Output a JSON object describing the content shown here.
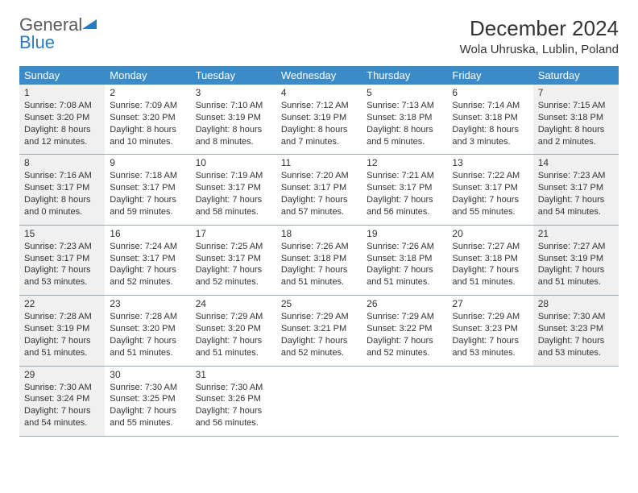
{
  "brand": {
    "word1": "General",
    "word2": "Blue"
  },
  "title": "December 2024",
  "location": "Wola Uhruska, Lublin, Poland",
  "colors": {
    "header_bg": "#3b8bc9",
    "header_text": "#ffffff",
    "cell_shade": "#f0f0f0",
    "border": "#95aab9",
    "logo_gray": "#5a5a5a",
    "logo_blue": "#2b7bbf"
  },
  "day_names": [
    "Sunday",
    "Monday",
    "Tuesday",
    "Wednesday",
    "Thursday",
    "Friday",
    "Saturday"
  ],
  "weeks": [
    [
      {
        "n": "1",
        "shaded": true,
        "sr": "7:08 AM",
        "ss": "3:20 PM",
        "dl": "8 hours and 12 minutes."
      },
      {
        "n": "2",
        "shaded": false,
        "sr": "7:09 AM",
        "ss": "3:20 PM",
        "dl": "8 hours and 10 minutes."
      },
      {
        "n": "3",
        "shaded": false,
        "sr": "7:10 AM",
        "ss": "3:19 PM",
        "dl": "8 hours and 8 minutes."
      },
      {
        "n": "4",
        "shaded": false,
        "sr": "7:12 AM",
        "ss": "3:19 PM",
        "dl": "8 hours and 7 minutes."
      },
      {
        "n": "5",
        "shaded": false,
        "sr": "7:13 AM",
        "ss": "3:18 PM",
        "dl": "8 hours and 5 minutes."
      },
      {
        "n": "6",
        "shaded": false,
        "sr": "7:14 AM",
        "ss": "3:18 PM",
        "dl": "8 hours and 3 minutes."
      },
      {
        "n": "7",
        "shaded": true,
        "sr": "7:15 AM",
        "ss": "3:18 PM",
        "dl": "8 hours and 2 minutes."
      }
    ],
    [
      {
        "n": "8",
        "shaded": true,
        "sr": "7:16 AM",
        "ss": "3:17 PM",
        "dl": "8 hours and 0 minutes."
      },
      {
        "n": "9",
        "shaded": false,
        "sr": "7:18 AM",
        "ss": "3:17 PM",
        "dl": "7 hours and 59 minutes."
      },
      {
        "n": "10",
        "shaded": false,
        "sr": "7:19 AM",
        "ss": "3:17 PM",
        "dl": "7 hours and 58 minutes."
      },
      {
        "n": "11",
        "shaded": false,
        "sr": "7:20 AM",
        "ss": "3:17 PM",
        "dl": "7 hours and 57 minutes."
      },
      {
        "n": "12",
        "shaded": false,
        "sr": "7:21 AM",
        "ss": "3:17 PM",
        "dl": "7 hours and 56 minutes."
      },
      {
        "n": "13",
        "shaded": false,
        "sr": "7:22 AM",
        "ss": "3:17 PM",
        "dl": "7 hours and 55 minutes."
      },
      {
        "n": "14",
        "shaded": true,
        "sr": "7:23 AM",
        "ss": "3:17 PM",
        "dl": "7 hours and 54 minutes."
      }
    ],
    [
      {
        "n": "15",
        "shaded": true,
        "sr": "7:23 AM",
        "ss": "3:17 PM",
        "dl": "7 hours and 53 minutes."
      },
      {
        "n": "16",
        "shaded": false,
        "sr": "7:24 AM",
        "ss": "3:17 PM",
        "dl": "7 hours and 52 minutes."
      },
      {
        "n": "17",
        "shaded": false,
        "sr": "7:25 AM",
        "ss": "3:17 PM",
        "dl": "7 hours and 52 minutes."
      },
      {
        "n": "18",
        "shaded": false,
        "sr": "7:26 AM",
        "ss": "3:18 PM",
        "dl": "7 hours and 51 minutes."
      },
      {
        "n": "19",
        "shaded": false,
        "sr": "7:26 AM",
        "ss": "3:18 PM",
        "dl": "7 hours and 51 minutes."
      },
      {
        "n": "20",
        "shaded": false,
        "sr": "7:27 AM",
        "ss": "3:18 PM",
        "dl": "7 hours and 51 minutes."
      },
      {
        "n": "21",
        "shaded": true,
        "sr": "7:27 AM",
        "ss": "3:19 PM",
        "dl": "7 hours and 51 minutes."
      }
    ],
    [
      {
        "n": "22",
        "shaded": true,
        "sr": "7:28 AM",
        "ss": "3:19 PM",
        "dl": "7 hours and 51 minutes."
      },
      {
        "n": "23",
        "shaded": false,
        "sr": "7:28 AM",
        "ss": "3:20 PM",
        "dl": "7 hours and 51 minutes."
      },
      {
        "n": "24",
        "shaded": false,
        "sr": "7:29 AM",
        "ss": "3:20 PM",
        "dl": "7 hours and 51 minutes."
      },
      {
        "n": "25",
        "shaded": false,
        "sr": "7:29 AM",
        "ss": "3:21 PM",
        "dl": "7 hours and 52 minutes."
      },
      {
        "n": "26",
        "shaded": false,
        "sr": "7:29 AM",
        "ss": "3:22 PM",
        "dl": "7 hours and 52 minutes."
      },
      {
        "n": "27",
        "shaded": false,
        "sr": "7:29 AM",
        "ss": "3:23 PM",
        "dl": "7 hours and 53 minutes."
      },
      {
        "n": "28",
        "shaded": true,
        "sr": "7:30 AM",
        "ss": "3:23 PM",
        "dl": "7 hours and 53 minutes."
      }
    ],
    [
      {
        "n": "29",
        "shaded": true,
        "sr": "7:30 AM",
        "ss": "3:24 PM",
        "dl": "7 hours and 54 minutes."
      },
      {
        "n": "30",
        "shaded": false,
        "sr": "7:30 AM",
        "ss": "3:25 PM",
        "dl": "7 hours and 55 minutes."
      },
      {
        "n": "31",
        "shaded": false,
        "sr": "7:30 AM",
        "ss": "3:26 PM",
        "dl": "7 hours and 56 minutes."
      },
      null,
      null,
      null,
      null
    ]
  ],
  "labels": {
    "sunrise": "Sunrise:",
    "sunset": "Sunset:",
    "daylight": "Daylight:"
  }
}
